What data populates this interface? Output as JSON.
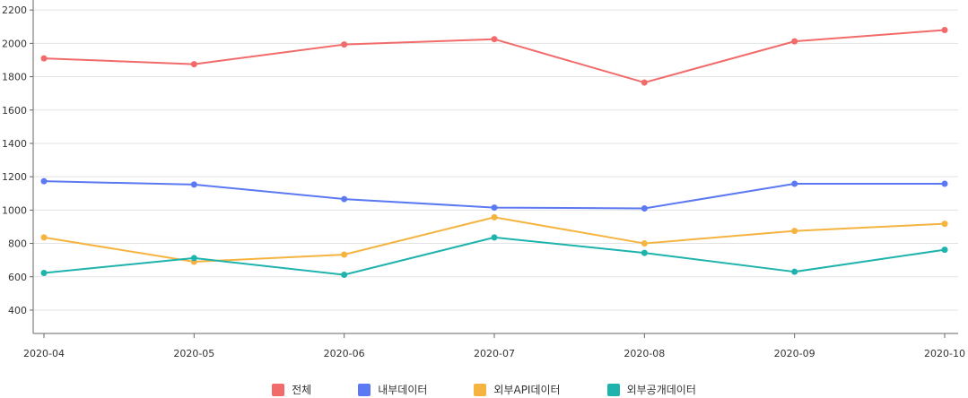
{
  "chart_data": {
    "type": "line",
    "title": "",
    "xlabel": "",
    "ylabel": "",
    "categories": [
      "2020-04",
      "2020-05",
      "2020-06",
      "2020-07",
      "2020-08",
      "2020-09",
      "2020-10"
    ],
    "ylim": [
      260,
      2260
    ],
    "yticks": [
      400,
      600,
      800,
      1000,
      1200,
      1400,
      1600,
      1800,
      2000,
      2200
    ],
    "grid": true,
    "legend_position": "bottom",
    "series": [
      {
        "name": "전체",
        "color": "#f26b6b",
        "values": [
          1910,
          1875,
          1993,
          2025,
          1765,
          2012,
          2080
        ]
      },
      {
        "name": "내부데이터",
        "color": "#5b79f2",
        "values": [
          1173,
          1153,
          1066,
          1015,
          1010,
          1158,
          1158
        ]
      },
      {
        "name": "외부API데이터",
        "color": "#f5b43f",
        "values": [
          836,
          690,
          733,
          957,
          800,
          875,
          918
        ]
      },
      {
        "name": "외부공개데이터",
        "color": "#1fb3ad",
        "values": [
          623,
          712,
          612,
          836,
          743,
          630,
          762
        ]
      }
    ]
  }
}
